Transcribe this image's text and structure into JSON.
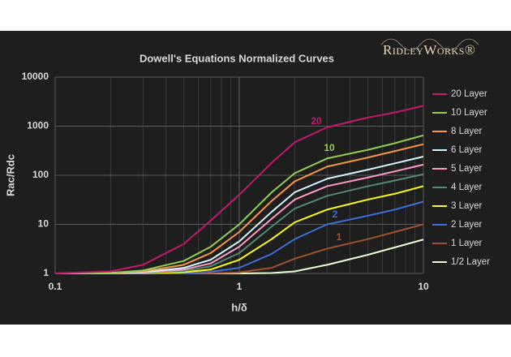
{
  "chart_data": {
    "type": "line",
    "title": "Dowell's Equations Normalized Curves",
    "logo": "RidleyWorks®",
    "x_label": "h/δ",
    "y_label": "Rac/Rdc",
    "log_x": true,
    "log_y": true,
    "grid": true,
    "legend": "right",
    "x": [
      0.1,
      0.2,
      0.3,
      0.5,
      0.7,
      1,
      1.5,
      2,
      3,
      5,
      7,
      10
    ],
    "xlim": [
      0.1,
      10
    ],
    "xticks": [
      0.1,
      1,
      10
    ],
    "ylim": [
      1,
      10000
    ],
    "yticks": [
      1,
      10,
      100,
      1000,
      10000
    ],
    "series": [
      {
        "name": "20 Layer",
        "color": "#c2186f",
        "values": [
          1,
          1.1,
          1.5,
          4,
          12,
          40,
          180,
          470,
          950,
          1500,
          1900,
          2600
        ]
      },
      {
        "name": "10 Layer",
        "color": "#92d050",
        "values": [
          1,
          1.03,
          1.15,
          1.8,
          3.5,
          10,
          45,
          110,
          220,
          330,
          450,
          650
        ]
      },
      {
        "name": "8 Layer",
        "color": "#f79646",
        "values": [
          1,
          1.02,
          1.1,
          1.5,
          2.6,
          7,
          30,
          75,
          150,
          230,
          310,
          430
        ]
      },
      {
        "name": "6 Layer",
        "color": "#d4f4ff",
        "values": [
          1,
          1.01,
          1.06,
          1.3,
          1.9,
          4.5,
          18,
          45,
          85,
          130,
          175,
          240
        ]
      },
      {
        "name": "5 Layer",
        "color": "#ff99c8",
        "values": [
          1,
          1.01,
          1.04,
          1.2,
          1.6,
          3.5,
          13,
          32,
          60,
          90,
          120,
          165
        ]
      },
      {
        "name": "4 Layer",
        "color": "#4f8c72",
        "values": [
          1,
          1,
          1.03,
          1.12,
          1.4,
          2.6,
          9,
          21,
          38,
          60,
          78,
          105
        ]
      },
      {
        "name": "3 Layer",
        "color": "#ffff00",
        "values": [
          1,
          1,
          1.01,
          1.06,
          1.2,
          1.9,
          5,
          11,
          20,
          32,
          42,
          60
        ]
      },
      {
        "name": "2 Layer",
        "color": "#3d6fd9",
        "values": [
          1,
          1,
          1,
          1.02,
          1.08,
          1.3,
          2.5,
          5,
          10,
          15,
          20,
          29
        ]
      },
      {
        "name": "1 Layer",
        "color": "#a0522d",
        "values": [
          1,
          1,
          1,
          1,
          1.01,
          1.05,
          1.3,
          2,
          3.2,
          5,
          7,
          10
        ]
      },
      {
        "name": "1/2 Layer",
        "color": "#eaffd2",
        "values": [
          1,
          1,
          1,
          1,
          1,
          1,
          1.02,
          1.1,
          1.5,
          2.4,
          3.4,
          4.9
        ]
      }
    ],
    "annotations": [
      "20",
      "10",
      "2",
      "1"
    ]
  }
}
